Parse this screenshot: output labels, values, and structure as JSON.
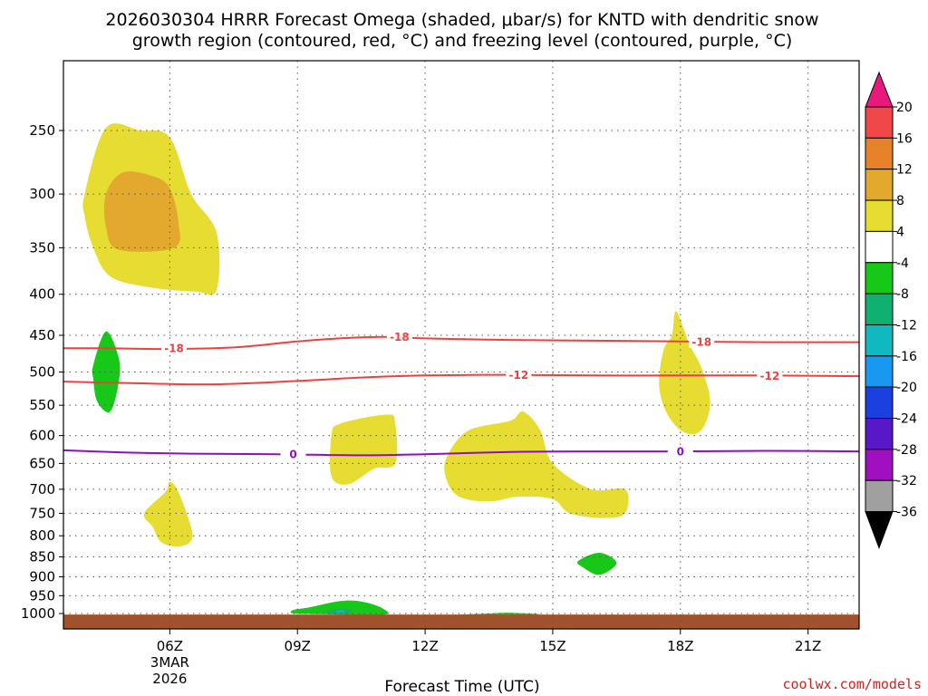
{
  "title_line1": "2026030304 HRRR Forecast Omega (shaded, μbar/s) for KNTD with dendritic snow",
  "title_line2": "growth region (contoured, red, °C) and freezing level (contoured, purple, °C)",
  "credit": "coolwx.com/models",
  "chart_data": {
    "type": "contour",
    "title": "2026030304 HRRR Forecast Omega (shaded, μbar/s) for KNTD with dendritic snow growth region (contoured, red, °C) and freezing level (contoured, purple, °C)",
    "xlabel": "Forecast Time (UTC)",
    "ylabel": "",
    "x_range_hours": [
      3.5,
      22.2
    ],
    "y_range_mb": [
      200,
      1020
    ],
    "y_scale": "log-pressure (inverted)",
    "grid": true,
    "x_ticks": [
      {
        "value": 6,
        "label": "06Z",
        "sub1": "3MAR",
        "sub2": "2026"
      },
      {
        "value": 9,
        "label": "09Z",
        "sub1": "",
        "sub2": ""
      },
      {
        "value": 12,
        "label": "12Z",
        "sub1": "",
        "sub2": ""
      },
      {
        "value": 15,
        "label": "15Z",
        "sub1": "",
        "sub2": ""
      },
      {
        "value": 18,
        "label": "18Z",
        "sub1": "",
        "sub2": ""
      },
      {
        "value": 21,
        "label": "21Z",
        "sub1": "",
        "sub2": ""
      }
    ],
    "y_ticks": [
      250,
      300,
      350,
      400,
      450,
      500,
      550,
      600,
      650,
      700,
      750,
      800,
      850,
      900,
      950,
      1000
    ],
    "colorbar": {
      "labels": [
        "20",
        "16",
        "12",
        "8",
        "4",
        "-4",
        "-8",
        "-12",
        "-16",
        "-20",
        "-24",
        "-28",
        "-32",
        "-36"
      ],
      "colors": [
        "#e8187c",
        "#f04848",
        "#e8822a",
        "#e3a92e",
        "#e6dc32",
        "#ffffff",
        "#18c818",
        "#10b070",
        "#10b8c0",
        "#1898f0",
        "#1a40e0",
        "#5818c8",
        "#a010c0",
        "#a0a0a0",
        "#000000"
      ]
    },
    "contours": [
      {
        "name": "-18",
        "color": "#ef4040",
        "label": "-18",
        "points": [
          [
            3.5,
            467
          ],
          [
            4.5,
            467
          ],
          [
            6,
            468
          ],
          [
            7.5,
            466
          ],
          [
            9,
            458
          ],
          [
            10,
            454
          ],
          [
            11,
            452
          ],
          [
            12,
            454
          ],
          [
            14,
            456
          ],
          [
            16,
            457
          ],
          [
            18,
            458
          ],
          [
            20,
            459
          ],
          [
            22.2,
            459
          ]
        ]
      },
      {
        "name": "-12",
        "color": "#ef4040",
        "label": "-12",
        "points": [
          [
            3.5,
            514
          ],
          [
            5,
            516
          ],
          [
            7,
            518
          ],
          [
            9,
            513
          ],
          [
            10.5,
            508
          ],
          [
            12,
            505
          ],
          [
            14,
            504
          ],
          [
            16,
            505
          ],
          [
            18,
            505
          ],
          [
            20,
            505
          ],
          [
            22.2,
            506
          ]
        ]
      },
      {
        "name": "0",
        "color": "#8a10c8",
        "label": "0",
        "points": [
          [
            3.5,
            626
          ],
          [
            5,
            630
          ],
          [
            6.5,
            632
          ],
          [
            8.5,
            633
          ],
          [
            10.5,
            635
          ],
          [
            12,
            633
          ],
          [
            14,
            629
          ],
          [
            16,
            628
          ],
          [
            18,
            628
          ],
          [
            20,
            627
          ],
          [
            22.2,
            628
          ]
        ]
      }
    ],
    "shaded_regions": [
      {
        "value_range": "4 to 8",
        "color": "#e6dc32",
        "points": [
          [
            4,
            300
          ],
          [
            4.5,
            248
          ],
          [
            5.3,
            250
          ],
          [
            6,
            255
          ],
          [
            6.5,
            300
          ],
          [
            7.1,
            335
          ],
          [
            7.1,
            395
          ],
          [
            6.6,
            397
          ],
          [
            5.5,
            392
          ],
          [
            4.6,
            380
          ],
          [
            4.2,
            350
          ],
          [
            4,
            320
          ]
        ]
      },
      {
        "value_range": "8 to 12",
        "color": "#e3a92e",
        "points": [
          [
            4.5,
            300
          ],
          [
            4.9,
            282
          ],
          [
            5.6,
            285
          ],
          [
            6,
            295
          ],
          [
            6.2,
            325
          ],
          [
            6.1,
            350
          ],
          [
            4.8,
            352
          ],
          [
            4.5,
            330
          ]
        ]
      },
      {
        "value_range": "4 to 8",
        "color": "#e6dc32",
        "points": [
          [
            5.4,
            750
          ],
          [
            5.9,
            705
          ],
          [
            6,
            685
          ],
          [
            6.2,
            705
          ],
          [
            6.5,
            780
          ],
          [
            6.5,
            812
          ],
          [
            6.2,
            825
          ],
          [
            5.8,
            815
          ],
          [
            5.6,
            780
          ]
        ]
      },
      {
        "value_range": "4 to 8",
        "color": "#e6dc32",
        "points": [
          [
            9.8,
            600
          ],
          [
            10,
            580
          ],
          [
            11.1,
            565
          ],
          [
            11.3,
            580
          ],
          [
            11.3,
            650
          ],
          [
            10.8,
            660
          ],
          [
            10.2,
            690
          ],
          [
            9.8,
            675
          ]
        ]
      },
      {
        "value_range": "4 to 8",
        "color": "#e6dc32",
        "points": [
          [
            12.5,
            640
          ],
          [
            13,
            592
          ],
          [
            14,
            575
          ],
          [
            14.3,
            560
          ],
          [
            14.7,
            590
          ],
          [
            15,
            650
          ],
          [
            15.9,
            700
          ],
          [
            16.7,
            700
          ],
          [
            16.7,
            750
          ],
          [
            16.2,
            760
          ],
          [
            15.4,
            750
          ],
          [
            15,
            720
          ],
          [
            14.2,
            715
          ],
          [
            13.5,
            725
          ],
          [
            12.8,
            715
          ],
          [
            12.5,
            680
          ]
        ]
      },
      {
        "value_range": "4 to 8",
        "color": "#e6dc32",
        "points": [
          [
            17.6,
            470
          ],
          [
            17.8,
            450
          ],
          [
            17.9,
            420
          ],
          [
            18.2,
            460
          ],
          [
            18.5,
            495
          ],
          [
            18.7,
            545
          ],
          [
            18.5,
            590
          ],
          [
            18.1,
            595
          ],
          [
            17.7,
            565
          ],
          [
            17.5,
            520
          ]
        ]
      },
      {
        "value_range": "-4 to -8",
        "color": "#18c818",
        "points": [
          [
            4.2,
            490
          ],
          [
            4.5,
            445
          ],
          [
            4.8,
            480
          ],
          [
            4.8,
            515
          ],
          [
            4.6,
            560
          ],
          [
            4.3,
            545
          ],
          [
            4.2,
            510
          ]
        ]
      },
      {
        "value_range": "-4 to -8",
        "color": "#18c818",
        "points": [
          [
            15.6,
            860
          ],
          [
            16.1,
            840
          ],
          [
            16.5,
            865
          ],
          [
            16.1,
            895
          ],
          [
            15.7,
            875
          ]
        ]
      },
      {
        "value_range": "-4 to -8",
        "color": "#18c818",
        "points": [
          [
            8.9,
            990
          ],
          [
            9.3,
            982
          ],
          [
            10,
            965
          ],
          [
            10.5,
            966
          ],
          [
            11,
            985
          ],
          [
            11,
            1004
          ],
          [
            9.5,
            1002
          ],
          [
            8.9,
            1000
          ]
        ]
      },
      {
        "value_range": "-8 to -12",
        "color": "#10b070",
        "points": [
          [
            9.7,
            992
          ],
          [
            10.1,
            987
          ],
          [
            10.3,
            993
          ],
          [
            10.1,
            1000
          ],
          [
            9.8,
            999
          ]
        ]
      },
      {
        "value_range": "-12 to -16",
        "color": "#10b8c0",
        "points": [
          [
            9.9,
            993
          ],
          [
            10.05,
            990
          ],
          [
            10.1,
            995
          ],
          [
            9.95,
            997
          ]
        ]
      },
      {
        "value_range": "-4 to -8",
        "color": "#18c818",
        "points": [
          [
            12.7,
            1004
          ],
          [
            13.5,
            1000
          ],
          [
            14,
            998
          ],
          [
            14.7,
            1002
          ],
          [
            14.2,
            1006
          ],
          [
            13.2,
            1006
          ]
        ]
      }
    ],
    "ground": {
      "color": "#a0522d",
      "top_mb": 1003
    }
  }
}
